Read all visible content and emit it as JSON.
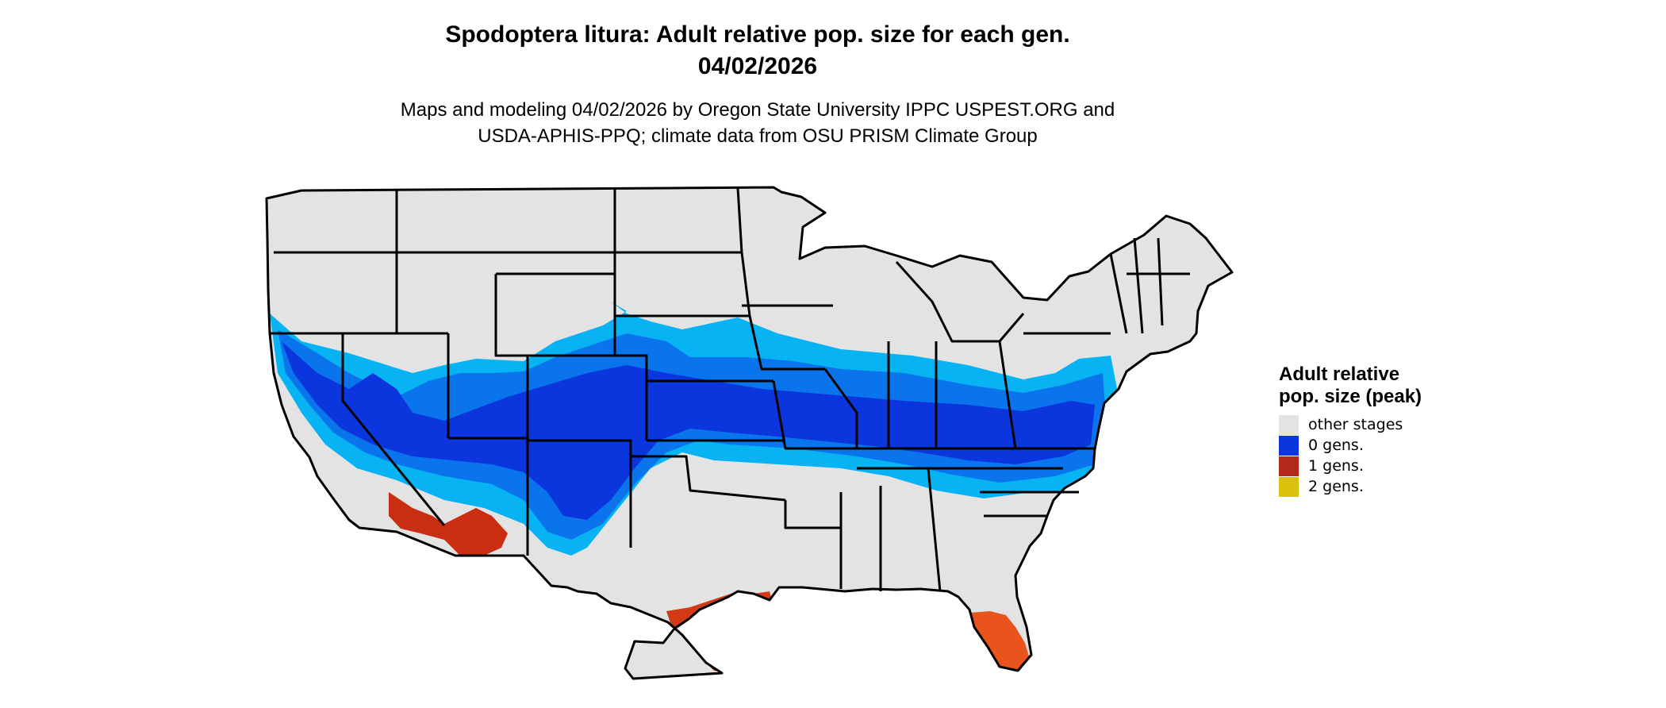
{
  "title_line1": "Spodoptera litura: Adult relative pop. size for each gen.",
  "title_line2": "04/02/2026",
  "subtitle_line1": "Maps and modeling 04/02/2026 by Oregon State University IPPC USPEST.ORG and",
  "subtitle_line2": "USDA-APHIS-PPQ; climate data from OSU PRISM Climate Group",
  "legend": {
    "title": "Adult relative pop. size (peak)",
    "items": [
      {
        "label": "other stages",
        "color": "#e3e3e3"
      },
      {
        "label": "0 gens.",
        "color": "#0b36de"
      },
      {
        "label": "1 gens.",
        "color": "#b3281a"
      },
      {
        "label": "2 gens.",
        "color": "#dcc10c"
      }
    ]
  },
  "colors": {
    "land": "#e3e3e3",
    "blue_dark": "#0b36de",
    "blue_mid": "#0a74ec",
    "blue_light": "#07b3f2",
    "red": "#c92e12",
    "orange": "#e8541c",
    "border": "#000000"
  }
}
